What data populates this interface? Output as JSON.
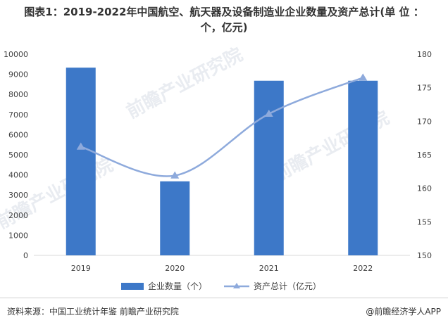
{
  "title": {
    "line1": "图表1：2019-2022年中国航空、航天器及设备制造业企业数量及资产总计(单 位 ：",
    "line2": "个，亿元)"
  },
  "watermark": "前瞻产业研究院",
  "footer": {
    "source": "资料来源：中国工业统计年鉴 前瞻产业研究院",
    "brand": "@前瞻经济学人APP"
  },
  "colors": {
    "bar": "#3d78c8",
    "line": "#8eaadc",
    "axis_text": "#404040",
    "grid": "#d9d9d9"
  },
  "chart_data": {
    "type": "bar",
    "categories": [
      "2019",
      "2020",
      "2021",
      "2022"
    ],
    "series": [
      {
        "name": "企业数量（个）",
        "type": "bar",
        "axis": "left",
        "values": [
          9330,
          3680,
          8680,
          8680
        ]
      },
      {
        "name": "资产总计（亿元）",
        "type": "line",
        "axis": "right",
        "values": [
          166.2,
          161.9,
          171.1,
          176.5
        ]
      }
    ],
    "y_left": {
      "min": 0,
      "max": 10000,
      "ticks": [
        0,
        1000,
        2000,
        3000,
        4000,
        5000,
        6000,
        7000,
        8000,
        9000,
        10000
      ]
    },
    "y_right": {
      "min": 150,
      "max": 180,
      "ticks": [
        150,
        155,
        160,
        165,
        170,
        175,
        180
      ]
    },
    "grid": false,
    "legend_position": "bottom"
  }
}
